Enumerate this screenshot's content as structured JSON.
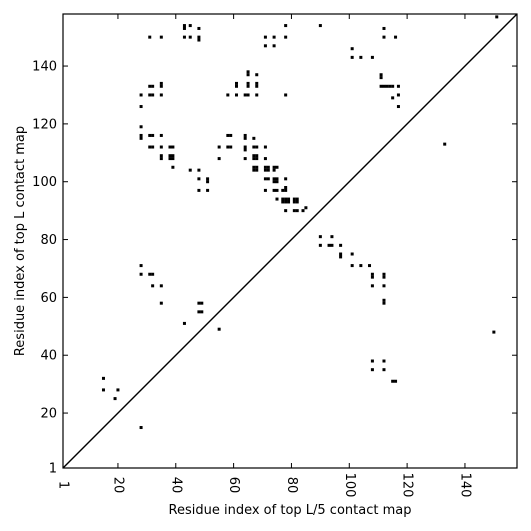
{
  "chart_data": {
    "type": "scatter",
    "title": "",
    "xlabel": "Residue index of top L/5 contact map",
    "ylabel": "Residue index of top L contact map",
    "xlim": [
      1,
      158
    ],
    "ylim": [
      1,
      158
    ],
    "xticks": [
      1,
      20,
      40,
      60,
      80,
      100,
      120,
      140
    ],
    "yticks": [
      1,
      20,
      40,
      60,
      80,
      100,
      120,
      140
    ],
    "grid": false,
    "diagonal_line": true,
    "marker_color": "#000000",
    "series": [
      {
        "values": [
          [
            15,
            32
          ],
          [
            15,
            28
          ],
          [
            19,
            25
          ],
          [
            20,
            28
          ],
          [
            28,
            15
          ],
          [
            28,
            71
          ],
          [
            28,
            68
          ],
          [
            31,
            68
          ],
          [
            32,
            68
          ],
          [
            32,
            64
          ],
          [
            35,
            64
          ],
          [
            35,
            58
          ],
          [
            43,
            51
          ],
          [
            48,
            58
          ],
          [
            49,
            58
          ],
          [
            48,
            55
          ],
          [
            49,
            55
          ],
          [
            55,
            49
          ],
          [
            150,
            48
          ],
          [
            133,
            113
          ],
          [
            28,
            119
          ],
          [
            28,
            116
          ],
          [
            28,
            115
          ],
          [
            31,
            116
          ],
          [
            32,
            116
          ],
          [
            31,
            112
          ],
          [
            32,
            112
          ],
          [
            35,
            116
          ],
          [
            35,
            112
          ],
          [
            35,
            109
          ],
          [
            35,
            108
          ],
          [
            38,
            112
          ],
          [
            39,
            112
          ],
          [
            38,
            109
          ],
          [
            39,
            109
          ],
          [
            38,
            108
          ],
          [
            39,
            108
          ],
          [
            39,
            105
          ],
          [
            45,
            104
          ],
          [
            48,
            104
          ],
          [
            48,
            101
          ],
          [
            48,
            97
          ],
          [
            51,
            101
          ],
          [
            51,
            100
          ],
          [
            51,
            97
          ],
          [
            55,
            112
          ],
          [
            55,
            108
          ],
          [
            58,
            116
          ],
          [
            59,
            116
          ],
          [
            58,
            112
          ],
          [
            59,
            112
          ],
          [
            64,
            116
          ],
          [
            64,
            115
          ],
          [
            64,
            112
          ],
          [
            64,
            111
          ],
          [
            64,
            108
          ],
          [
            67,
            115
          ],
          [
            67,
            112
          ],
          [
            68,
            112
          ],
          [
            67,
            109
          ],
          [
            68,
            109
          ],
          [
            67,
            108
          ],
          [
            68,
            108
          ],
          [
            67,
            105
          ],
          [
            68,
            105
          ],
          [
            67,
            104
          ],
          [
            68,
            104
          ],
          [
            71,
            112
          ],
          [
            71,
            108
          ],
          [
            71,
            105
          ],
          [
            72,
            105
          ],
          [
            71,
            104
          ],
          [
            72,
            104
          ],
          [
            71,
            101
          ],
          [
            72,
            101
          ],
          [
            71,
            97
          ],
          [
            74,
            105
          ],
          [
            75,
            105
          ],
          [
            74,
            104
          ],
          [
            74,
            101
          ],
          [
            75,
            101
          ],
          [
            74,
            100
          ],
          [
            75,
            100
          ],
          [
            74,
            97
          ],
          [
            75,
            97
          ],
          [
            75,
            94
          ],
          [
            78,
            101
          ],
          [
            78,
            98
          ],
          [
            77,
            97
          ],
          [
            78,
            97
          ],
          [
            77,
            94
          ],
          [
            78,
            94
          ],
          [
            79,
            94
          ],
          [
            78,
            93
          ],
          [
            79,
            93
          ],
          [
            77,
            93
          ],
          [
            78,
            90
          ],
          [
            81,
            94
          ],
          [
            82,
            94
          ],
          [
            81,
            93
          ],
          [
            82,
            93
          ],
          [
            81,
            90
          ],
          [
            82,
            90
          ],
          [
            84,
            90
          ],
          [
            85,
            91
          ],
          [
            28,
            130
          ],
          [
            28,
            126
          ],
          [
            31,
            133
          ],
          [
            32,
            133
          ],
          [
            31,
            130
          ],
          [
            32,
            130
          ],
          [
            35,
            134
          ],
          [
            35,
            133
          ],
          [
            35,
            130
          ],
          [
            31,
            150
          ],
          [
            35,
            150
          ],
          [
            43,
            154
          ],
          [
            43,
            153
          ],
          [
            43,
            150
          ],
          [
            45,
            154
          ],
          [
            45,
            150
          ],
          [
            48,
            153
          ],
          [
            48,
            150
          ],
          [
            48,
            149
          ],
          [
            58,
            130
          ],
          [
            61,
            134
          ],
          [
            61,
            133
          ],
          [
            61,
            130
          ],
          [
            64,
            130
          ],
          [
            65,
            130
          ],
          [
            65,
            134
          ],
          [
            65,
            133
          ],
          [
            65,
            137
          ],
          [
            65,
            138
          ],
          [
            68,
            137
          ],
          [
            68,
            134
          ],
          [
            68,
            133
          ],
          [
            68,
            130
          ],
          [
            71,
            150
          ],
          [
            71,
            147
          ],
          [
            74,
            150
          ],
          [
            74,
            147
          ],
          [
            78,
            154
          ],
          [
            78,
            150
          ],
          [
            78,
            130
          ],
          [
            90,
            154
          ],
          [
            101,
            146
          ],
          [
            101,
            143
          ],
          [
            104,
            143
          ],
          [
            108,
            143
          ],
          [
            111,
            137
          ],
          [
            111,
            136
          ],
          [
            111,
            133
          ],
          [
            112,
            133
          ],
          [
            113,
            133
          ],
          [
            114,
            133
          ],
          [
            115,
            133
          ],
          [
            117,
            133
          ],
          [
            115,
            129
          ],
          [
            117,
            130
          ],
          [
            117,
            126
          ],
          [
            112,
            153
          ],
          [
            112,
            150
          ],
          [
            116,
            150
          ],
          [
            151,
            157
          ],
          [
            90,
            81
          ],
          [
            90,
            78
          ],
          [
            94,
            81
          ],
          [
            93,
            78
          ],
          [
            94,
            78
          ],
          [
            97,
            78
          ],
          [
            97,
            75
          ],
          [
            97,
            74
          ],
          [
            101,
            75
          ],
          [
            101,
            71
          ],
          [
            104,
            71
          ],
          [
            107,
            71
          ],
          [
            108,
            68
          ],
          [
            108,
            67
          ],
          [
            108,
            64
          ],
          [
            112,
            68
          ],
          [
            112,
            67
          ],
          [
            112,
            64
          ],
          [
            112,
            59
          ],
          [
            112,
            58
          ],
          [
            108,
            38
          ],
          [
            112,
            38
          ],
          [
            108,
            35
          ],
          [
            112,
            35
          ],
          [
            115,
            31
          ],
          [
            116,
            31
          ]
        ]
      }
    ]
  }
}
